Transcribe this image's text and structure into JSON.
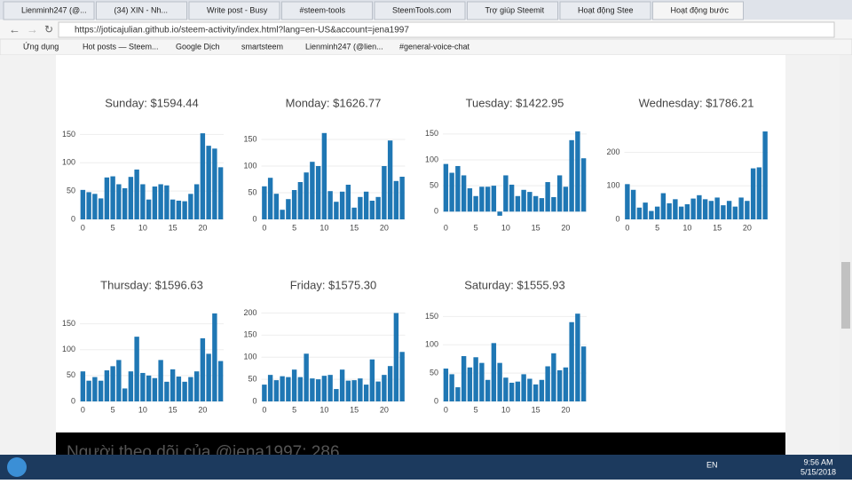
{
  "browser": {
    "tabs": [
      "Lienminh247 (@...",
      "(34) XIN - Nh...",
      "Write post - Busy",
      "#steem-tools",
      "SteemTools.com",
      "Trợ giúp Steemit",
      "Hoạt động Stee",
      "Hoạt động bước"
    ],
    "url": "https://joticajulian.github.io/steem-activity/index.html?lang=en-US&account=jena1997",
    "bookmarks": [
      "Ứng dụng",
      "Hot posts — Steem...",
      "Google Dịch",
      "smartsteem",
      "Lienminh247 (@lien...",
      "#general-voice-chat"
    ]
  },
  "chart_data": [
    {
      "type": "bar",
      "title": "Sunday: $1594.44",
      "color": "#1f77b4",
      "xlim": [
        -0.5,
        23.5
      ],
      "xticks": [
        0,
        5,
        10,
        15,
        20
      ],
      "ylim": [
        0,
        160
      ],
      "yticks": [
        0,
        50,
        100,
        150
      ],
      "grid": true,
      "values": [
        52,
        48,
        45,
        37,
        74,
        76,
        62,
        55,
        75,
        88,
        62,
        35,
        58,
        62,
        60,
        35,
        33,
        32,
        45,
        62,
        152,
        130,
        125,
        92
      ]
    },
    {
      "type": "bar",
      "title": "Monday: $1626.77",
      "color": "#1f77b4",
      "xlim": [
        -0.5,
        23.5
      ],
      "xticks": [
        0,
        5,
        10,
        15,
        20
      ],
      "ylim": [
        0,
        170
      ],
      "yticks": [
        0,
        50,
        100,
        150
      ],
      "grid": true,
      "values": [
        62,
        78,
        48,
        18,
        38,
        55,
        70,
        88,
        108,
        100,
        162,
        53,
        33,
        52,
        65,
        22,
        42,
        52,
        35,
        42,
        100,
        148,
        72,
        80
      ]
    },
    {
      "type": "bar",
      "title": "Tuesday: $1422.95",
      "color": "#1f77b4",
      "xlim": [
        -0.5,
        23.5
      ],
      "xticks": [
        0,
        5,
        10,
        15,
        20
      ],
      "ylim": [
        -15,
        160
      ],
      "yticks": [
        0,
        50,
        100,
        150
      ],
      "grid": true,
      "values": [
        92,
        75,
        88,
        70,
        45,
        30,
        48,
        48,
        50,
        -8,
        70,
        52,
        30,
        42,
        38,
        30,
        26,
        57,
        28,
        70,
        48,
        138,
        155,
        103
      ]
    },
    {
      "type": "bar",
      "title": "Wednesday: $1786.21",
      "color": "#1f77b4",
      "xlim": [
        -0.5,
        23.5
      ],
      "xticks": [
        0,
        5,
        10,
        15,
        20
      ],
      "ylim": [
        0,
        270
      ],
      "yticks": [
        0,
        100,
        200
      ],
      "grid": true,
      "values": [
        105,
        88,
        35,
        50,
        25,
        38,
        78,
        48,
        60,
        38,
        45,
        62,
        72,
        60,
        55,
        65,
        42,
        55,
        38,
        65,
        55,
        152,
        155,
        262
      ]
    },
    {
      "type": "bar",
      "title": "Thursday: $1596.63",
      "color": "#1f77b4",
      "xlim": [
        -0.5,
        23.5
      ],
      "xticks": [
        0,
        5,
        10,
        15,
        20
      ],
      "ylim": [
        0,
        175
      ],
      "yticks": [
        0,
        50,
        100,
        150
      ],
      "grid": true,
      "values": [
        58,
        40,
        47,
        40,
        60,
        68,
        80,
        25,
        58,
        125,
        55,
        50,
        45,
        80,
        38,
        62,
        48,
        38,
        47,
        58,
        122,
        92,
        170,
        78
      ]
    },
    {
      "type": "bar",
      "title": "Friday: $1575.30",
      "color": "#1f77b4",
      "xlim": [
        -0.5,
        23.5
      ],
      "xticks": [
        0,
        5,
        10,
        15,
        20
      ],
      "ylim": [
        0,
        205
      ],
      "yticks": [
        0,
        50,
        100,
        150,
        200
      ],
      "grid": true,
      "values": [
        38,
        60,
        48,
        57,
        55,
        72,
        55,
        108,
        52,
        50,
        58,
        60,
        28,
        72,
        47,
        48,
        52,
        38,
        95,
        45,
        60,
        80,
        200,
        112
      ]
    },
    {
      "type": "bar",
      "title": "Saturday: $1555.93",
      "color": "#1f77b4",
      "xlim": [
        -0.5,
        23.5
      ],
      "xticks": [
        0,
        5,
        10,
        15,
        20
      ],
      "ylim": [
        0,
        160
      ],
      "yticks": [
        0,
        50,
        100,
        150
      ],
      "grid": true,
      "values": [
        58,
        48,
        25,
        80,
        60,
        78,
        68,
        38,
        103,
        68,
        42,
        33,
        35,
        48,
        40,
        30,
        38,
        62,
        85,
        55,
        60,
        140,
        155,
        97
      ]
    }
  ],
  "footer": "Người theo dõi của @jena1997: 286",
  "taskbar": {
    "lang": "EN",
    "time": "9:56 AM",
    "date": "5/15/2018"
  }
}
